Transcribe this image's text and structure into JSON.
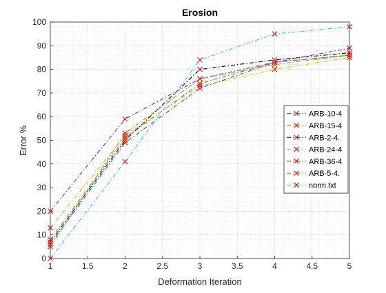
{
  "chart_data": {
    "type": "line",
    "title": "Erosion",
    "xlabel": "Deformation Iteration",
    "ylabel": "Error %",
    "xlim": [
      1,
      5
    ],
    "ylim": [
      0,
      100
    ],
    "x_ticks": [
      "1",
      "1.5",
      "2",
      "2.5",
      "3",
      "3.5",
      "4",
      "4.5",
      "5"
    ],
    "y_ticks": [
      "0",
      "10",
      "20",
      "30",
      "40",
      "50",
      "60",
      "70",
      "80",
      "90",
      "100"
    ],
    "grid": "major and minor, dotted",
    "legend_position": "right",
    "x": [
      1,
      2,
      3,
      4,
      5
    ],
    "series": [
      {
        "name": "ARB-10-4",
        "color": "#0072BD",
        "dash": "dash-dot",
        "marker": "x",
        "values": [
          6,
          49,
          72,
          83,
          86
        ]
      },
      {
        "name": "ARB-15-4",
        "color": "#D95319",
        "dash": "dash-dot",
        "marker": "x",
        "values": [
          8,
          51,
          74,
          83,
          86
        ]
      },
      {
        "name": "ARB-2-4.",
        "color": "#000000",
        "dash": "dash-dot",
        "marker": "x",
        "values": [
          7,
          50,
          80,
          84,
          87
        ]
      },
      {
        "name": "ARB-24-4",
        "color": "#EDB120",
        "dash": "dash-dot",
        "marker": "x",
        "values": [
          13,
          52,
          73,
          80,
          85
        ]
      },
      {
        "name": "ARB-36-4",
        "color": "#7E2F8E",
        "dash": "dash-dot",
        "marker": "x",
        "values": [
          20,
          59,
          76,
          83,
          89
        ]
      },
      {
        "name": "ARB-5-4.",
        "color": "#77AC30",
        "dash": "dash-dot",
        "marker": "x",
        "values": [
          5,
          53,
          76,
          82,
          86
        ]
      },
      {
        "name": "norm.txt",
        "color": "#4DBEEE",
        "dash": "dash-dot",
        "marker": "x",
        "values": [
          0,
          41,
          84,
          95,
          98
        ]
      }
    ],
    "marker_color": "#E02020"
  }
}
